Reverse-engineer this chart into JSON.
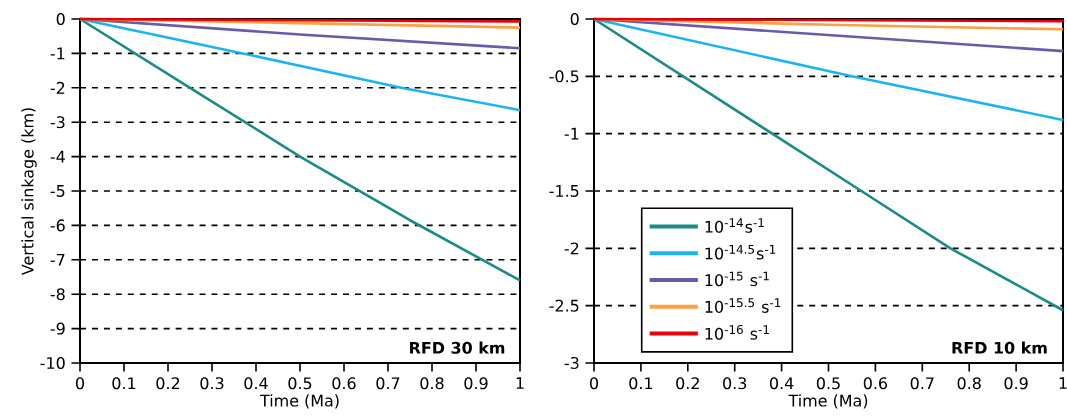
{
  "chart_data": [
    {
      "type": "line",
      "xlabel": "Time (Ma)",
      "ylabel": "Vertical sinkage (km)",
      "xlim": [
        0,
        1
      ],
      "ylim": [
        -10,
        0
      ],
      "xticks": [
        0,
        0.1,
        0.2,
        0.3,
        0.4,
        0.5,
        0.6,
        0.7,
        0.8,
        0.9,
        1
      ],
      "yticks": [
        -10,
        -9,
        -8,
        -7,
        -6,
        -5,
        -4,
        -3,
        -2,
        -1,
        0
      ],
      "grid": "y",
      "legend": false,
      "annotations": [
        "RFD 30 km"
      ],
      "series": [
        {
          "color": "#1a8c84",
          "x": [
            0,
            0.25,
            0.5,
            0.75,
            1
          ],
          "values": [
            0,
            -2,
            -4,
            -5.85,
            -7.6
          ]
        },
        {
          "color": "#1cb4f0",
          "x": [
            0,
            0.37,
            0.73,
            1
          ],
          "values": [
            0,
            -1,
            -2,
            -2.65
          ]
        },
        {
          "color": "#6a5aa8",
          "x": [
            0,
            0.5,
            1
          ],
          "values": [
            0,
            -0.45,
            -0.85
          ]
        },
        {
          "color": "#ffa040",
          "x": [
            0,
            0.5,
            1
          ],
          "values": [
            0,
            -0.12,
            -0.25
          ]
        },
        {
          "color": "#e8000c",
          "x": [
            0,
            1
          ],
          "values": [
            0,
            -0.07
          ]
        }
      ]
    },
    {
      "type": "line",
      "xlabel": "Time (Ma)",
      "xlim": [
        0,
        1
      ],
      "ylim": [
        -3,
        0
      ],
      "xticks": [
        0,
        0.1,
        0.2,
        0.3,
        0.4,
        0.5,
        0.6,
        0.7,
        0.8,
        0.9,
        1
      ],
      "yticks": [
        -3,
        -2.5,
        -2,
        -1.5,
        -1,
        -0.5,
        0
      ],
      "grid": "y",
      "legend": "bottom left",
      "annotations": [
        "RFD 10 km"
      ],
      "series": [
        {
          "name": "10$^{-14}$s$^{-1}$",
          "color": "#1a8c84",
          "x": [
            0,
            0.19,
            0.38,
            0.57,
            0.76,
            1
          ],
          "values": [
            0,
            -0.5,
            -1,
            -1.5,
            -2,
            -2.54
          ]
        },
        {
          "name": "10$^{-14.5}$s$^{-1}$",
          "color": "#1cb4f0",
          "x": [
            0,
            0.55,
            1
          ],
          "values": [
            0,
            -0.5,
            -0.88
          ]
        },
        {
          "name": "10$^{-15}$ s$^{-1}$",
          "color": "#6a5aa8",
          "x": [
            0,
            0.5,
            1
          ],
          "values": [
            0,
            -0.14,
            -0.28
          ]
        },
        {
          "name": "10$^{-15.5}$ s$^{-1}$",
          "color": "#ffa040",
          "x": [
            0,
            0.5,
            1
          ],
          "values": [
            0,
            -0.05,
            -0.09
          ]
        },
        {
          "name": "10$^{-16}$ s$^{-1}$",
          "color": "#e8000c",
          "x": [
            0,
            1
          ],
          "values": [
            0,
            -0.02
          ]
        }
      ]
    }
  ]
}
